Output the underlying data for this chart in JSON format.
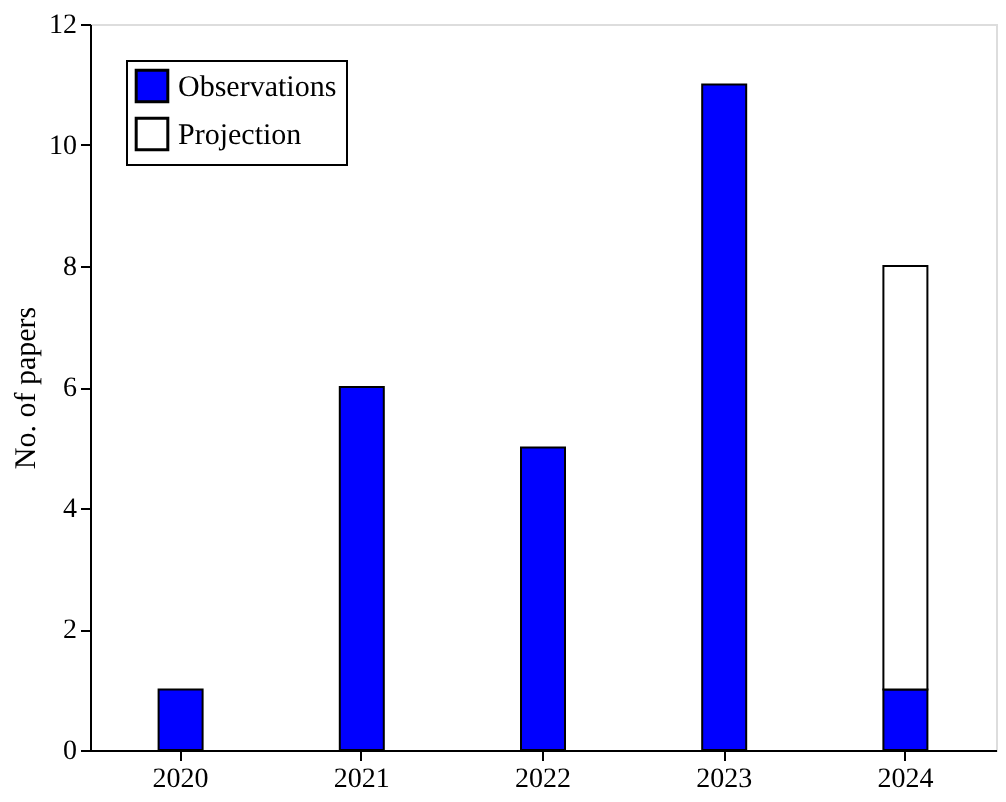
{
  "chart_data": {
    "type": "bar",
    "ylabel": "No. of papers",
    "categories": [
      "2020",
      "2021",
      "2022",
      "2023",
      "2024"
    ],
    "stacked": true,
    "series": [
      {
        "name": "Observations",
        "color": "#0000ff",
        "values": [
          1,
          6,
          5,
          11,
          1
        ]
      },
      {
        "name": "Projection",
        "color": "#ffffff",
        "values": [
          null,
          null,
          null,
          null,
          7
        ]
      }
    ],
    "ylim": [
      0,
      12
    ],
    "yticks": [
      0,
      2,
      4,
      6,
      8,
      10,
      12
    ],
    "grid": false,
    "legend": "top left"
  }
}
